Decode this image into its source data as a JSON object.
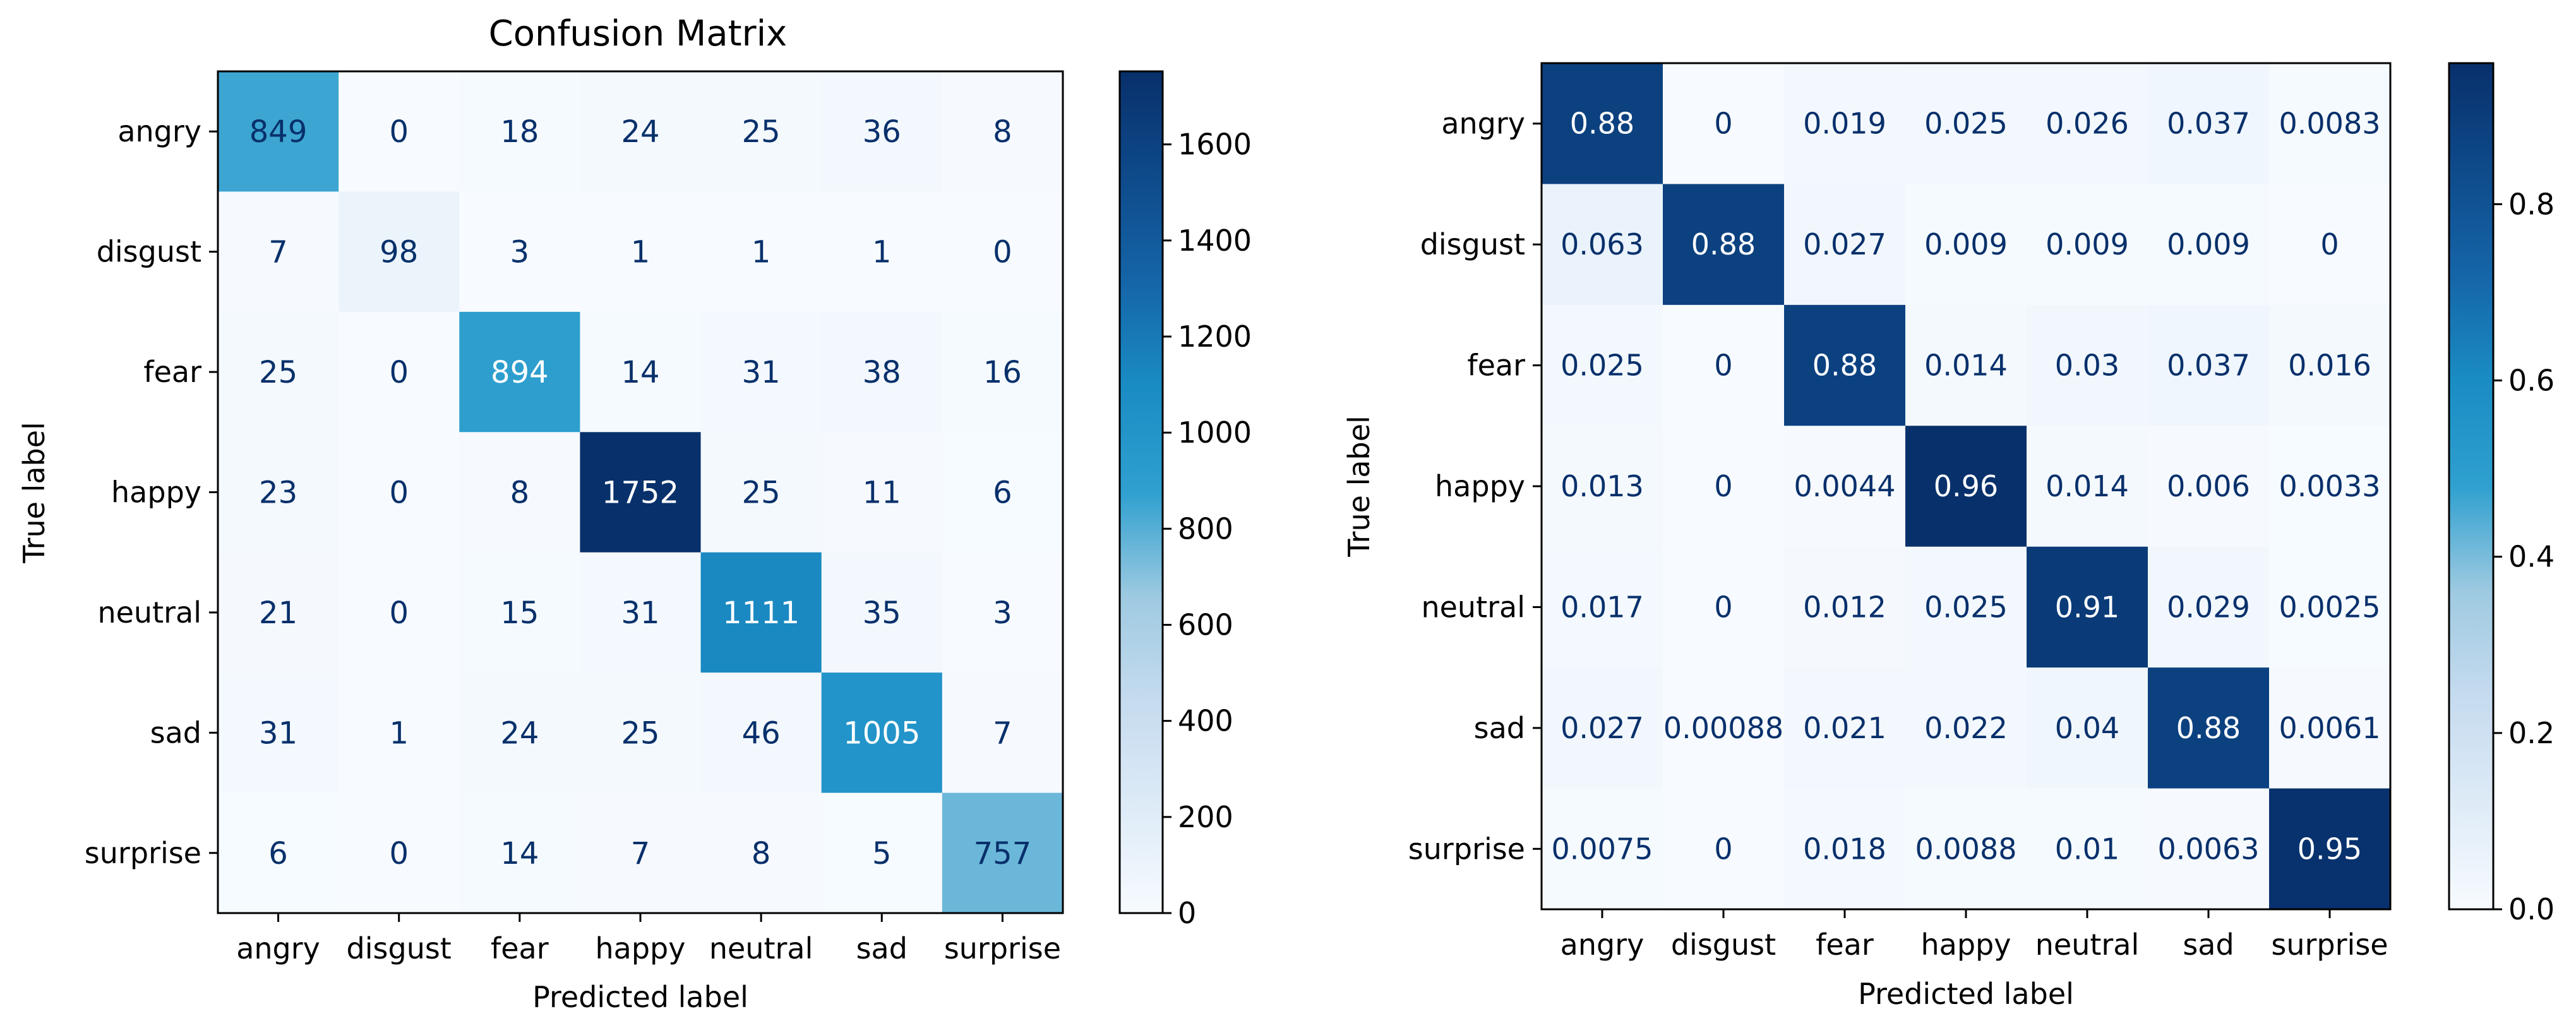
{
  "chart_data": [
    {
      "type": "heatmap",
      "title": "Confusion Matrix",
      "xlabel": "Predicted label",
      "ylabel": "True label",
      "x_categories": [
        "angry",
        "disgust",
        "fear",
        "happy",
        "neutral",
        "sad",
        "surprise"
      ],
      "y_categories": [
        "angry",
        "disgust",
        "fear",
        "happy",
        "neutral",
        "sad",
        "surprise"
      ],
      "values": [
        [
          849,
          0,
          18,
          24,
          25,
          36,
          8
        ],
        [
          7,
          98,
          3,
          1,
          1,
          1,
          0
        ],
        [
          25,
          0,
          894,
          14,
          31,
          38,
          16
        ],
        [
          23,
          0,
          8,
          1752,
          25,
          11,
          6
        ],
        [
          21,
          0,
          15,
          31,
          1111,
          35,
          3
        ],
        [
          31,
          1,
          24,
          25,
          46,
          1005,
          7
        ],
        [
          6,
          0,
          14,
          7,
          8,
          5,
          757
        ]
      ],
      "cell_labels": [
        [
          "849",
          "0",
          "18",
          "24",
          "25",
          "36",
          "8"
        ],
        [
          "7",
          "98",
          "3",
          "1",
          "1",
          "1",
          "0"
        ],
        [
          "25",
          "0",
          "894",
          "14",
          "31",
          "38",
          "16"
        ],
        [
          "23",
          "0",
          "8",
          "1752",
          "25",
          "11",
          "6"
        ],
        [
          "21",
          "0",
          "15",
          "31",
          "1111",
          "35",
          "3"
        ],
        [
          "31",
          "1",
          "24",
          "25",
          "46",
          "1005",
          "7"
        ],
        [
          "6",
          "0",
          "14",
          "7",
          "8",
          "5",
          "757"
        ]
      ],
      "colormap": "Blues",
      "vmin": 0,
      "vmax": 1752,
      "colorbar_ticks": [
        0,
        200,
        400,
        600,
        800,
        1000,
        1200,
        1400,
        1600
      ],
      "colorbar_tick_labels": [
        "0",
        "200",
        "400",
        "600",
        "800",
        "1000",
        "1200",
        "1400",
        "1600"
      ]
    },
    {
      "type": "heatmap",
      "title": "",
      "xlabel": "Predicted label",
      "ylabel": "True label",
      "x_categories": [
        "angry",
        "disgust",
        "fear",
        "happy",
        "neutral",
        "sad",
        "surprise"
      ],
      "y_categories": [
        "angry",
        "disgust",
        "fear",
        "happy",
        "neutral",
        "sad",
        "surprise"
      ],
      "values": [
        [
          0.88,
          0,
          0.019,
          0.025,
          0.026,
          0.037,
          0.0083
        ],
        [
          0.063,
          0.88,
          0.027,
          0.009,
          0.009,
          0.009,
          0
        ],
        [
          0.025,
          0,
          0.88,
          0.014,
          0.03,
          0.037,
          0.016
        ],
        [
          0.013,
          0,
          0.0044,
          0.96,
          0.014,
          0.006,
          0.0033
        ],
        [
          0.017,
          0,
          0.012,
          0.025,
          0.91,
          0.029,
          0.0025
        ],
        [
          0.027,
          0.00088,
          0.021,
          0.022,
          0.04,
          0.88,
          0.0061
        ],
        [
          0.0075,
          0,
          0.018,
          0.0088,
          0.01,
          0.0063,
          0.95
        ]
      ],
      "cell_labels": [
        [
          "0.88",
          "0",
          "0.019",
          "0.025",
          "0.026",
          "0.037",
          "0.0083"
        ],
        [
          "0.063",
          "0.88",
          "0.027",
          "0.009",
          "0.009",
          "0.009",
          "0"
        ],
        [
          "0.025",
          "0",
          "0.88",
          "0.014",
          "0.03",
          "0.037",
          "0.016"
        ],
        [
          "0.013",
          "0",
          "0.0044",
          "0.96",
          "0.014",
          "0.006",
          "0.0033"
        ],
        [
          "0.017",
          "0",
          "0.012",
          "0.025",
          "0.91",
          "0.029",
          "0.0025"
        ],
        [
          "0.027",
          "0.00088",
          "0.021",
          "0.022",
          "0.04",
          "0.88",
          "0.0061"
        ],
        [
          "0.0075",
          "0",
          "0.018",
          "0.0088",
          "0.01",
          "0.0063",
          "0.95"
        ]
      ],
      "colormap": "Blues",
      "vmin": 0,
      "vmax": 0.96,
      "colorbar_ticks": [
        0,
        0.2,
        0.4,
        0.6,
        0.8
      ],
      "colorbar_tick_labels": [
        "0.0",
        "0.2",
        "0.4",
        "0.6",
        "0.8"
      ]
    }
  ]
}
